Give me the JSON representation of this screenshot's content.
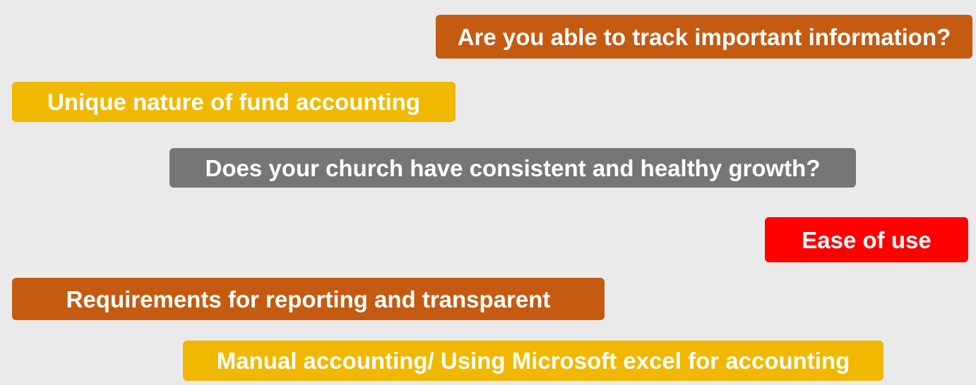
{
  "tags": [
    {
      "text": "Are you able to track important information?",
      "color": "#c55a11"
    },
    {
      "text": "Unique nature of fund accounting",
      "color": "#f0b800"
    },
    {
      "text": "Does your church have consistent and healthy growth?",
      "color": "#767676"
    },
    {
      "text": "Ease of use",
      "color": "#ff0000"
    },
    {
      "text": "Requirements for reporting and transparent",
      "color": "#c55a11"
    },
    {
      "text": "Manual accounting/ Using Microsoft excel for accounting",
      "color": "#f0b800"
    }
  ]
}
